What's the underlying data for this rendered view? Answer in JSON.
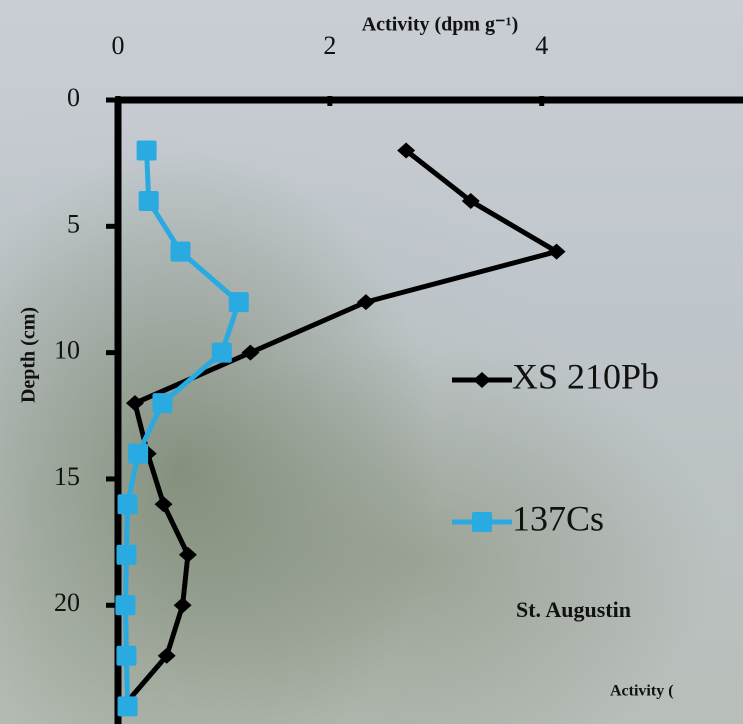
{
  "chart_data": {
    "type": "line",
    "title": "Activity (dpm g⁻¹)",
    "y_label": "Depth (cm)",
    "y": [
      2,
      4,
      6,
      8,
      10,
      12,
      14,
      16,
      18,
      20,
      22,
      24
    ],
    "series": [
      {
        "name": "XS 210Pb",
        "color": "#000000",
        "marker": "diamond",
        "values": [
          2.72,
          3.33,
          4.14,
          2.34,
          1.25,
          0.16,
          0.28,
          0.43,
          0.66,
          0.61,
          0.46,
          0.05
        ]
      },
      {
        "name": "137Cs",
        "color": "#29aae1",
        "marker": "square",
        "values": [
          0.27,
          0.29,
          0.59,
          1.14,
          0.98,
          0.42,
          0.19,
          0.09,
          0.08,
          0.07,
          0.08,
          0.09
        ]
      }
    ],
    "xlim": [
      0,
      5.9
    ],
    "xticks": [
      0,
      2,
      4
    ],
    "ylim": [
      0,
      24.7
    ],
    "yticks": [
      0,
      5,
      10,
      15,
      20
    ],
    "legend": "right",
    "annotations": [
      "St. Augustin",
      "Activity ("
    ]
  }
}
